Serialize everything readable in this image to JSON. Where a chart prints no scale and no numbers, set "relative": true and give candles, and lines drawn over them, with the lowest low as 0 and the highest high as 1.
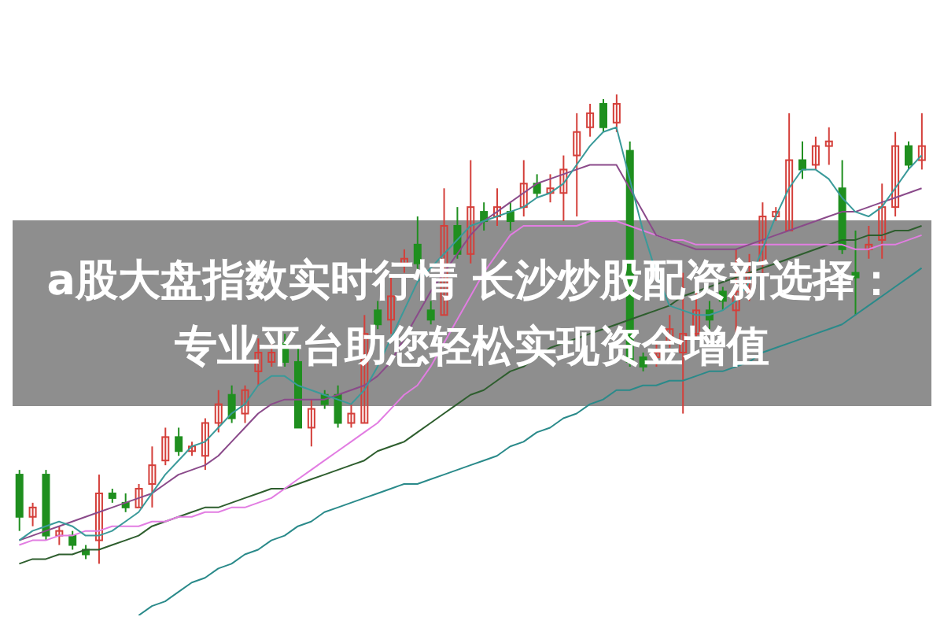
{
  "chart_data": {
    "type": "candlestick",
    "title": "a股大盘指数实时行情 长沙炒股配资新选择：专业平台助您轻松实现资金增值",
    "relative": true,
    "tick_labels": false,
    "marker": "none",
    "categories": [
      null,
      null,
      null,
      null,
      null,
      null,
      null,
      null,
      null,
      null,
      null,
      null,
      null,
      null,
      null,
      null,
      null,
      null,
      null,
      null,
      null,
      null,
      null,
      null,
      null,
      null,
      null,
      null,
      null,
      null,
      null,
      null,
      null,
      null,
      null,
      null,
      null,
      null,
      null,
      null,
      null,
      null,
      null,
      null,
      null,
      null,
      null,
      null,
      null,
      null,
      null,
      null,
      null,
      null,
      null,
      null,
      null,
      null,
      null,
      null,
      null,
      null,
      null,
      null,
      null,
      null,
      null,
      null,
      null
    ],
    "ohlc": [
      [
        0.19,
        0.2,
        0.07,
        0.1
      ],
      [
        0.1,
        0.13,
        0.08,
        0.12
      ],
      [
        0.19,
        0.2,
        0.05,
        0.06
      ],
      [
        0.06,
        0.08,
        0.04,
        0.07
      ],
      [
        0.06,
        0.07,
        0.03,
        0.04
      ],
      [
        0.03,
        0.04,
        0.01,
        0.02
      ],
      [
        0.05,
        0.19,
        0,
        0.15
      ],
      [
        0.15,
        0.16,
        0.13,
        0.14
      ],
      [
        0.13,
        0.15,
        0.11,
        0.12
      ],
      [
        0.12,
        0.17,
        0.12,
        0.16
      ],
      [
        0.17,
        0.25,
        0.12,
        0.21
      ],
      [
        0.22,
        0.29,
        0.21,
        0.27
      ],
      [
        0.27,
        0.29,
        0.23,
        0.24
      ],
      [
        0.24,
        0.26,
        0.23,
        0.25
      ],
      [
        0.23,
        0.31,
        0.2,
        0.3
      ],
      [
        0.3,
        0.37,
        0.28,
        0.34
      ],
      [
        0.36,
        0.38,
        0.3,
        0.31
      ],
      [
        0.32,
        0.38,
        0.3,
        0.37
      ],
      [
        0.41,
        0.48,
        0.38,
        0.45
      ],
      [
        0.43,
        0.47,
        0.42,
        0.45
      ],
      [
        0.47,
        0.49,
        0.42,
        0.43
      ],
      [
        0.43,
        0.46,
        0.29,
        0.29
      ],
      [
        0.29,
        0.35,
        0.25,
        0.33
      ],
      [
        0.36,
        0.37,
        0.33,
        0.34
      ],
      [
        0.36,
        0.38,
        0.29,
        0.3
      ],
      [
        0.3,
        0.34,
        0.29,
        0.32
      ],
      [
        0.3,
        0.53,
        0.3,
        0.49
      ],
      [
        0.54,
        0.56,
        0.5,
        0.51
      ],
      [
        0.52,
        0.61,
        0.49,
        0.57
      ],
      [
        0.64,
        0.67,
        0.62,
        0.65
      ],
      [
        0.68,
        0.74,
        0.62,
        0.64
      ],
      [
        0.54,
        0.56,
        0.51,
        0.52
      ],
      [
        0.53,
        0.8,
        0.53,
        0.72
      ],
      [
        0.72,
        0.76,
        0.65,
        0.66
      ],
      [
        0.66,
        0.86,
        0.64,
        0.76
      ],
      [
        0.75,
        0.77,
        0.71,
        0.73
      ],
      [
        0.74,
        0.8,
        0.72,
        0.76
      ],
      [
        0.75,
        0.77,
        0.71,
        0.73
      ],
      [
        0.76,
        0.86,
        0.74,
        0.81
      ],
      [
        0.81,
        0.83,
        0.78,
        0.79
      ],
      [
        0.79,
        0.83,
        0.77,
        0.8
      ],
      [
        0.79,
        0.87,
        0.73,
        0.84
      ],
      [
        0.87,
        0.96,
        0.74,
        0.92
      ],
      [
        0.93,
        0.98,
        0.91,
        0.96
      ],
      [
        0.98,
        0.99,
        0.92,
        0.93
      ],
      [
        0.94,
        1,
        0.92,
        0.98
      ],
      [
        0.88,
        0.9,
        0.42,
        0.43
      ],
      [
        0.44,
        0.45,
        0.41,
        0.42
      ],
      [
        0.44,
        0.47,
        0.42,
        0.45
      ],
      [
        0.47,
        0.53,
        0.46,
        0.5
      ],
      [
        0.45,
        0.62,
        0.32,
        0.49
      ],
      [
        0.49,
        0.58,
        0.48,
        0.54
      ],
      [
        0.54,
        0.56,
        0.5,
        0.52
      ],
      [
        0.58,
        0.59,
        0.54,
        0.56
      ],
      [
        0.54,
        0.67,
        0.49,
        0.58
      ],
      [
        0.58,
        0.66,
        0.56,
        0.62
      ],
      [
        0.64,
        0.77,
        0.62,
        0.74
      ],
      [
        0.74,
        0.76,
        0.73,
        0.75
      ],
      [
        0.71,
        0.96,
        0.71,
        0.86
      ],
      [
        0.86,
        0.9,
        0.82,
        0.84
      ],
      [
        0.85,
        0.91,
        0.84,
        0.89
      ],
      [
        0.89,
        0.93,
        0.85,
        0.9
      ],
      [
        0.8,
        0.86,
        0.66,
        0.67
      ],
      [
        0.62,
        0.71,
        0.53,
        0.61
      ],
      [
        0.67,
        0.72,
        0.65,
        0.68
      ],
      [
        0.69,
        0.81,
        0.65,
        0.76
      ],
      [
        0.76,
        0.92,
        0.74,
        0.89
      ],
      [
        0.89,
        0.9,
        0.84,
        0.85
      ],
      [
        0.86,
        0.96,
        0.84,
        0.89
      ]
    ],
    "colors": [
      "#1f8f1f",
      "#d43f3a",
      "#1f8f1f",
      "#d43f3a",
      "#1f8f1f",
      "#1f8f1f",
      "#d43f3a",
      "#1f8f1f",
      "#1f8f1f",
      "#d43f3a",
      "#d43f3a",
      "#d43f3a",
      "#1f8f1f",
      "#d43f3a",
      "#d43f3a",
      "#d43f3a",
      "#1f8f1f",
      "#d43f3a",
      "#d43f3a",
      "#d43f3a",
      "#1f8f1f",
      "#1f8f1f",
      "#d43f3a",
      "#1f8f1f",
      "#1f8f1f",
      "#d43f3a",
      "#d43f3a",
      "#1f8f1f",
      "#d43f3a",
      "#d43f3a",
      "#1f8f1f",
      "#1f8f1f",
      "#d43f3a",
      "#1f8f1f",
      "#d43f3a",
      "#1f8f1f",
      "#d43f3a",
      "#1f8f1f",
      "#d43f3a",
      "#1f8f1f",
      "#d43f3a",
      "#d43f3a",
      "#d43f3a",
      "#d43f3a",
      "#1f8f1f",
      "#d43f3a",
      "#1f8f1f",
      "#1f8f1f",
      "#d43f3a",
      "#d43f3a",
      "#d43f3a",
      "#d43f3a",
      "#1f8f1f",
      "#1f8f1f",
      "#d43f3a",
      "#d43f3a",
      "#d43f3a",
      "#d43f3a",
      "#d43f3a",
      "#1f8f1f",
      "#d43f3a",
      "#d43f3a",
      "#1f8f1f",
      "#1f8f1f",
      "#d43f3a",
      "#d43f3a",
      "#d43f3a",
      "#1f8f1f",
      "#d43f3a"
    ],
    "series": [
      {
        "type": "line",
        "color": "#2a8a8a",
        "values": [
          null,
          null,
          null,
          null,
          null,
          null,
          null,
          null,
          null,
          -0.11,
          -0.09,
          -0.08,
          -0.06,
          -0.04,
          -0.03,
          -0.01,
          0,
          0.02,
          0.03,
          0.05,
          0.06,
          0.08,
          0.09,
          0.11,
          0.12,
          0.13,
          0.14,
          0.15,
          0.16,
          0.17,
          0.17,
          0.18,
          0.19,
          0.2,
          0.21,
          0.22,
          0.23,
          0.25,
          0.26,
          0.28,
          0.29,
          0.31,
          0.32,
          0.34,
          0.35,
          0.37,
          0.37,
          0.38,
          0.38,
          0.39,
          0.39,
          0.4,
          0.41,
          0.41,
          0.42,
          0.43,
          0.45,
          0.46,
          0.47,
          0.48,
          0.49,
          0.5,
          0.51,
          0.53,
          0.55,
          0.57,
          0.59,
          0.61,
          0.63
        ]
      },
      {
        "type": "line",
        "color": "#2e5e2e",
        "values": [
          0,
          0.01,
          0.01,
          0.02,
          0.02,
          0.03,
          0.03,
          0.04,
          0.05,
          0.06,
          0.08,
          0.09,
          0.1,
          0.11,
          0.12,
          0.12,
          0.13,
          0.14,
          0.15,
          0.16,
          0.16,
          0.17,
          0.18,
          0.19,
          0.2,
          0.21,
          0.22,
          0.24,
          0.25,
          0.26,
          0.28,
          0.3,
          0.32,
          0.34,
          0.36,
          0.37,
          0.39,
          0.41,
          0.42,
          0.44,
          0.46,
          0.47,
          0.48,
          0.49,
          0.5,
          0.51,
          0.52,
          0.53,
          0.54,
          0.55,
          0.57,
          0.58,
          0.59,
          0.6,
          0.61,
          0.62,
          0.63,
          0.64,
          0.65,
          0.66,
          0.67,
          0.68,
          0.69,
          0.69,
          0.7,
          0.7,
          0.71,
          0.71,
          0.72
        ]
      },
      {
        "type": "line",
        "color": "#e27de2",
        "values": [
          0.04,
          0.05,
          0.05,
          0.06,
          0.06,
          0.07,
          0.07,
          0.08,
          0.08,
          0.08,
          0.09,
          0.09,
          0.1,
          0.1,
          0.11,
          0.11,
          0.12,
          0.12,
          0.13,
          0.14,
          0.16,
          0.18,
          0.2,
          0.22,
          0.24,
          0.26,
          0.28,
          0.3,
          0.33,
          0.36,
          0.38,
          0.42,
          0.47,
          0.52,
          0.57,
          0.62,
          0.66,
          0.7,
          0.72,
          0.72,
          0.72,
          0.72,
          0.72,
          0.73,
          0.73,
          0.73,
          0.72,
          0.71,
          0.7,
          0.69,
          0.69,
          0.68,
          0.68,
          0.68,
          0.68,
          0.68,
          0.68,
          0.68,
          0.68,
          0.68,
          0.68,
          0.68,
          0.68,
          0.67,
          0.67,
          0.68,
          0.68,
          0.69,
          0.7
        ]
      },
      {
        "type": "line",
        "color": "#8a4a8a",
        "values": [
          0.05,
          0.06,
          0.07,
          0.08,
          0.09,
          0.1,
          0.11,
          0.12,
          0.13,
          0.14,
          0.15,
          0.17,
          0.19,
          0.2,
          0.21,
          0.23,
          0.26,
          0.29,
          0.32,
          0.34,
          0.35,
          0.35,
          0.35,
          0.35,
          0.36,
          0.37,
          0.38,
          0.4,
          0.43,
          0.48,
          0.53,
          0.58,
          0.62,
          0.66,
          0.7,
          0.73,
          0.75,
          0.77,
          0.79,
          0.81,
          0.82,
          0.83,
          0.84,
          0.85,
          0.85,
          0.85,
          0.8,
          0.75,
          0.7,
          0.69,
          0.68,
          0.67,
          0.67,
          0.67,
          0.67,
          0.68,
          0.69,
          0.7,
          0.71,
          0.72,
          0.73,
          0.74,
          0.75,
          0.75,
          0.76,
          0.77,
          0.78,
          0.79,
          0.8
        ]
      },
      {
        "type": "line",
        "color": "#3a9a9a",
        "values": [
          0.05,
          0.07,
          0.08,
          0.09,
          0.08,
          0.06,
          0.06,
          0.07,
          0.09,
          0.11,
          0.15,
          0.19,
          0.22,
          0.25,
          0.26,
          0.29,
          0.32,
          0.34,
          0.38,
          0.4,
          0.4,
          0.38,
          0.37,
          0.36,
          0.35,
          0.34,
          0.37,
          0.42,
          0.48,
          0.54,
          0.6,
          0.63,
          0.66,
          0.69,
          0.72,
          0.73,
          0.74,
          0.75,
          0.76,
          0.78,
          0.79,
          0.81,
          0.85,
          0.89,
          0.92,
          0.93,
          0.82,
          0.71,
          0.62,
          0.55,
          0.54,
          0.53,
          0.53,
          0.54,
          0.56,
          0.6,
          0.67,
          0.74,
          0.8,
          0.84,
          0.84,
          0.82,
          0.78,
          0.75,
          0.74,
          0.76,
          0.8,
          0.84,
          0.87
        ]
      }
    ]
  }
}
